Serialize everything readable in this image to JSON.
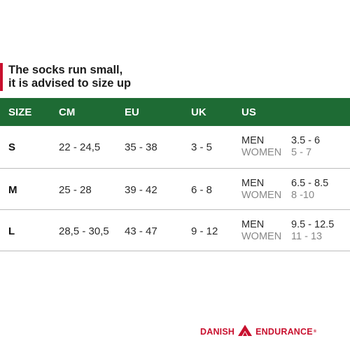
{
  "notice": {
    "line1": "The socks run small,",
    "line2": "it is advised to size up"
  },
  "table": {
    "headers": {
      "size": "SIZE",
      "cm": "CM",
      "eu": "EU",
      "uk": "UK",
      "us": "US"
    },
    "rows": [
      {
        "size": "S",
        "cm": "22 - 24,5",
        "eu": "35 - 38",
        "uk": "3 - 5",
        "men_label": "MEN",
        "men": "3.5 - 6",
        "women_label": "WOMEN",
        "women": "5 - 7"
      },
      {
        "size": "M",
        "cm": "25 - 28",
        "eu": "39 - 42",
        "uk": "6 - 8",
        "men_label": "MEN",
        "men": "6.5 - 8.5",
        "women_label": "WOMEN",
        "women": "8 -10"
      },
      {
        "size": "L",
        "cm": "28,5 - 30,5",
        "eu": "43 - 47",
        "uk": "9 - 12",
        "men_label": "MEN",
        "men": "9.5 - 12.5",
        "women_label": "WOMEN",
        "women": "11 - 13"
      }
    ]
  },
  "brand": {
    "left": "DANISH",
    "right": "ENDURANCE",
    "tm": "®"
  },
  "colors": {
    "accent": "#c8102e",
    "header_bg": "#1e6b34"
  }
}
